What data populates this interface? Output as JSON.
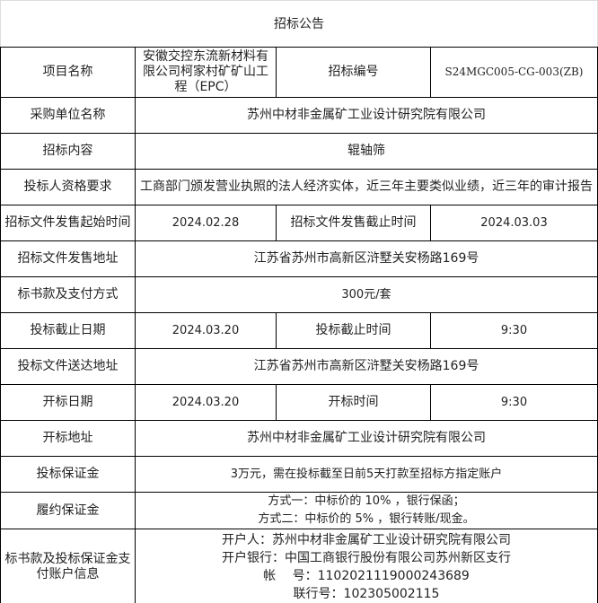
{
  "title": "招标公告",
  "project_name": {
    "label": "项目名称",
    "value": "安徽交控东流新材料有限公司柯家村矿矿山工程（EPC）"
  },
  "tender_no": {
    "label": "招标编号",
    "value": "S24MGC005-CG-003(ZB)"
  },
  "purchaser": {
    "label": "采购单位名称",
    "value": "苏州中材非金属矿工业设计研究院有限公司"
  },
  "content": {
    "label": "招标内容",
    "value": "辊轴筛"
  },
  "qualification": {
    "label": "投标人资格要求",
    "value": "工商部门颁发营业执照的法人经济实体，近三年主要类似业绩，近三年的审计报告"
  },
  "doc_sale_start": {
    "label": "招标文件发售起始时间",
    "value": "2024.02.28"
  },
  "doc_sale_end": {
    "label": "招标文件发售截止时间",
    "value": "2024.03.03"
  },
  "doc_sale_address": {
    "label": "招标文件发售地址",
    "value": "江苏省苏州市高新区浒墅关安杨路169号"
  },
  "doc_fee": {
    "label": "标书款及支付方式",
    "value": "300元/套"
  },
  "bid_deadline_date": {
    "label": "投标截止日期",
    "value": "2024.03.20"
  },
  "bid_deadline_time": {
    "label": "投标截止时间",
    "value": "9:30"
  },
  "bid_delivery_address": {
    "label": "投标文件送达地址",
    "value": "江苏省苏州市高新区浒墅关安杨路169号"
  },
  "opening_date": {
    "label": "开标日期",
    "value": "2024.03.20"
  },
  "opening_time": {
    "label": "开标时间",
    "value": "9:30"
  },
  "opening_address": {
    "label": "开标地址",
    "value": "苏州中材非金属矿工业设计研究院有限公司"
  },
  "bid_bond": {
    "label": "投标保证金",
    "value": "3万元，需在投标截至日前5天打款至招标方指定账户"
  },
  "performance_bond": {
    "label": "履约保证金",
    "lines": [
      "方式一：中标价的 10% ，银行保函；",
      "方式二：中标价的 5% ，银行转账/现金。"
    ]
  },
  "account": {
    "label": "标书款及投标保证金支付账户信息",
    "lines": [
      "开户人：苏州中材非金属矿工业设计研究院有限公司",
      "开户银行：中国工商银行股份有限公司苏州新区支行",
      "帐　 号：1102021119000243689",
      "联行号：102305002115"
    ]
  }
}
